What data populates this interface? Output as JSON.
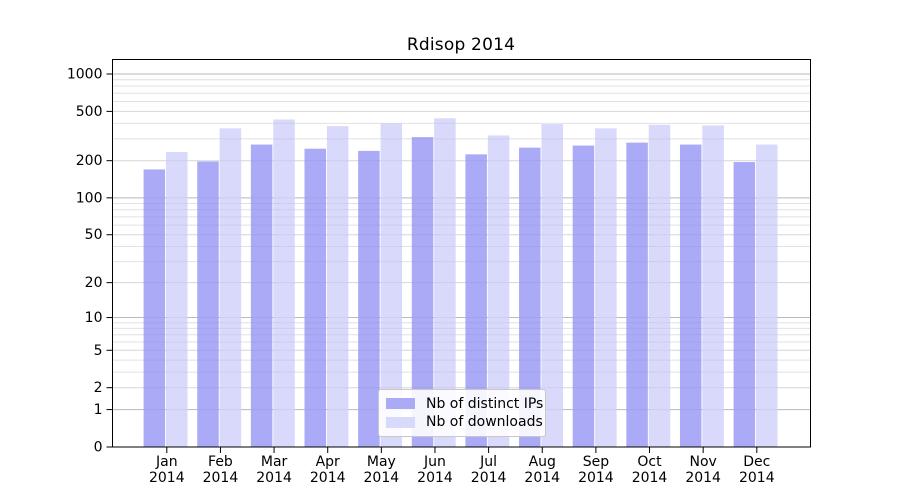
{
  "chart_data": {
    "type": "bar",
    "title": "Rdisop 2014",
    "categories": [
      "Jan",
      "Feb",
      "Mar",
      "Apr",
      "May",
      "Jun",
      "Jul",
      "Aug",
      "Sep",
      "Oct",
      "Nov",
      "Dec"
    ],
    "x_year_label": "2014",
    "series": [
      {
        "name": "Nb of distinct IPs",
        "color": "#aaaaf7",
        "values": [
          170,
          197,
          270,
          250,
          240,
          310,
          225,
          255,
          265,
          280,
          270,
          195
        ]
      },
      {
        "name": "Nb of downloads",
        "color": "#d9d9fb",
        "values": [
          235,
          365,
          430,
          380,
          400,
          440,
          320,
          395,
          365,
          390,
          385,
          270
        ]
      }
    ],
    "y_axis": {
      "scale": "log1p",
      "ticks": [
        0,
        1,
        2,
        5,
        10,
        20,
        50,
        100,
        200,
        500,
        1000
      ],
      "ylim": [
        0,
        1100
      ],
      "minor_gridline_mantissas": [
        3,
        4,
        6,
        7,
        8,
        9
      ]
    },
    "grid": "horizontal log gridlines, majors darker at powers of 10",
    "legend_position": "inside bottom-center"
  }
}
